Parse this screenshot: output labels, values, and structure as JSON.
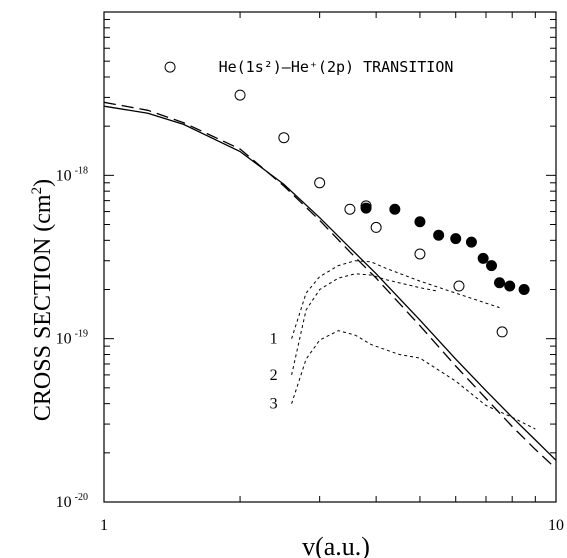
{
  "chart_data": {
    "type": "line",
    "title": "",
    "annotation": {
      "label": "TRANSITION",
      "transition": "He(1s²)–He⁺(2p)"
    },
    "xlabel": "v(a.u.)",
    "ylabel": "CROSS SECTION (cm²)",
    "x_scale": "log",
    "y_scale": "log",
    "xlim": [
      1,
      10
    ],
    "ylim": [
      1e-20,
      1e-17
    ],
    "grid": false,
    "legend": "none",
    "x_ticks": [
      {
        "value": 1,
        "label": "1"
      },
      {
        "value": 10,
        "label": "10"
      }
    ],
    "y_ticks": [
      {
        "value": 1e-20,
        "base": "10",
        "exp": "-20"
      },
      {
        "value": 1e-19,
        "base": "10",
        "exp": "-19"
      },
      {
        "value": 1e-18,
        "base": "10",
        "exp": "-18"
      }
    ],
    "curve_labels": [
      "1",
      "2",
      "3"
    ],
    "series": [
      {
        "style": "solid",
        "x": [
          1,
          1.25,
          1.5,
          2,
          2.5,
          3,
          3.5,
          4,
          5,
          6,
          7,
          8,
          9,
          10
        ],
        "y": [
          2.65e-18,
          2.4e-18,
          2.05e-18,
          1.4e-18,
          8.8e-19,
          5.5e-19,
          3.6e-19,
          2.5e-19,
          1.3e-19,
          7.5e-20,
          4.8e-20,
          3.3e-20,
          2.4e-20,
          1.8e-20
        ]
      },
      {
        "style": "long-dash",
        "x": [
          1,
          1.25,
          1.5,
          2,
          2.5,
          3,
          3.5,
          4,
          5,
          6,
          7,
          8,
          9,
          10
        ],
        "y": [
          2.8e-18,
          2.5e-18,
          2.1e-18,
          1.45e-18,
          8.6e-19,
          5.3e-19,
          3.4e-19,
          2.35e-19,
          1.2e-19,
          6.8e-20,
          4.3e-20,
          2.9e-20,
          2.1e-20,
          1.6e-20
        ]
      },
      {
        "style": "short-dash",
        "label": "1",
        "x": [
          2.6,
          2.8,
          3.0,
          3.3,
          3.6,
          3.9,
          4.2,
          5,
          6,
          7.5
        ],
        "y": [
          1e-19,
          1.9e-19,
          2.4e-19,
          2.8e-19,
          3e-19,
          2.95e-19,
          2.7e-19,
          2.25e-19,
          1.9e-19,
          1.55e-19
        ]
      },
      {
        "style": "short-dash",
        "label": "2",
        "x": [
          2.6,
          2.8,
          3.0,
          3.3,
          3.6,
          3.9,
          4.2,
          5,
          5.5
        ],
        "y": [
          6e-20,
          1.5e-19,
          2e-19,
          2.35e-19,
          2.5e-19,
          2.45e-19,
          2.3e-19,
          2.05e-19,
          1.95e-19
        ]
      },
      {
        "style": "short-dash",
        "label": "3",
        "x": [
          2.6,
          2.8,
          3.0,
          3.3,
          3.6,
          3.9,
          4.5,
          5,
          6,
          7,
          8,
          9
        ],
        "y": [
          4e-20,
          7.5e-20,
          9.8e-20,
          1.12e-19,
          1.05e-19,
          9.2e-20,
          8e-20,
          7.6e-20,
          5.5e-20,
          3.9e-20,
          3.3e-20,
          2.8e-20
        ]
      }
    ],
    "points": [
      {
        "marker": "open-circle",
        "x": [
          1.4,
          2.0,
          2.5,
          3.0,
          3.5,
          3.8,
          4.0,
          5.0,
          6.1,
          7.6
        ],
        "y": [
          4.6e-18,
          3.1e-18,
          1.7e-18,
          9e-19,
          6.2e-19,
          6.5e-19,
          4.8e-19,
          3.3e-19,
          2.1e-19,
          1.1e-19
        ]
      },
      {
        "marker": "filled-circle",
        "x": [
          3.8,
          4.4,
          5.0,
          5.5,
          6.0,
          6.5,
          6.9,
          7.2,
          7.5,
          7.9,
          8.5
        ],
        "y": [
          6.3e-19,
          6.2e-19,
          5.2e-19,
          4.3e-19,
          4.1e-19,
          3.9e-19,
          3.1e-19,
          2.8e-19,
          2.2e-19,
          2.1e-19,
          2e-19
        ]
      }
    ]
  }
}
